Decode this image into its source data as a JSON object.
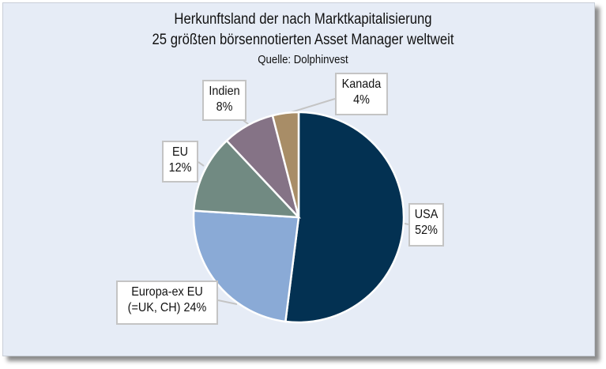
{
  "chart_data": {
    "type": "pie",
    "title_line1": "Herkunftsland der nach Marktkapitalisierung",
    "title_line2": "25 größten börsennotierten Asset Manager weltweit",
    "subtitle": "Quelle: Dolphinvest",
    "start": "top",
    "direction": "clockwise",
    "slices": [
      {
        "name": "USA",
        "label": "USA",
        "value_label": "52%",
        "value": 52,
        "color": "#033152"
      },
      {
        "name": "Europa-ex EU (=UK, CH)",
        "label": "Europa-ex EU",
        "value_label": "(=UK, CH) 24%",
        "value": 24,
        "color": "#8aaad6"
      },
      {
        "name": "EU",
        "label": "EU",
        "value_label": "12%",
        "value": 12,
        "color": "#718a82"
      },
      {
        "name": "Indien",
        "label": "Indien",
        "value_label": "8%",
        "value": 8,
        "color": "#857386"
      },
      {
        "name": "Kanada",
        "label": "Kanada",
        "value_label": "4%",
        "value": 4,
        "color": "#a88d67"
      }
    ]
  }
}
